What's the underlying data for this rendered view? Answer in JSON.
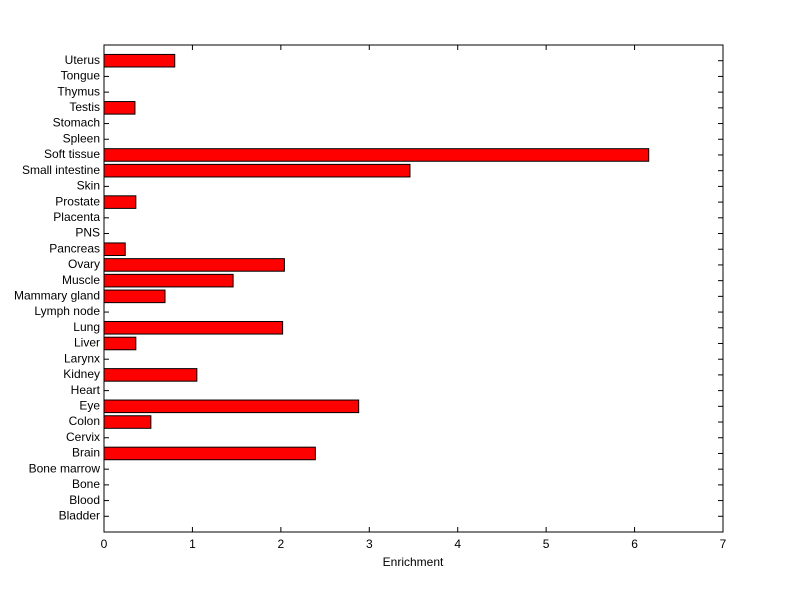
{
  "chart_data": {
    "type": "bar",
    "orientation": "horizontal",
    "xlabel": "Enrichment",
    "categories": [
      "Bladder",
      "Blood",
      "Bone",
      "Bone marrow",
      "Brain",
      "Cervix",
      "Colon",
      "Eye",
      "Heart",
      "Kidney",
      "Larynx",
      "Liver",
      "Lung",
      "Lymph node",
      "Mammary gland",
      "Muscle",
      "Ovary",
      "Pancreas",
      "PNS",
      "Placenta",
      "Prostate",
      "Skin",
      "Small intestine",
      "Soft tissue",
      "Spleen",
      "Stomach",
      "Testis",
      "Thymus",
      "Tongue",
      "Uterus"
    ],
    "values": [
      0,
      0,
      0,
      0,
      2.39,
      0,
      0.53,
      2.88,
      0,
      1.05,
      0,
      0.36,
      2.02,
      0,
      0.69,
      1.46,
      2.04,
      0.24,
      0,
      0,
      0.36,
      0,
      3.46,
      6.16,
      0,
      0,
      0.35,
      0,
      0,
      0.8
    ],
    "color": "#ff0000",
    "xlim": [
      0,
      7
    ],
    "xticks": [
      0,
      1,
      2,
      3,
      4,
      5,
      6,
      7
    ]
  }
}
